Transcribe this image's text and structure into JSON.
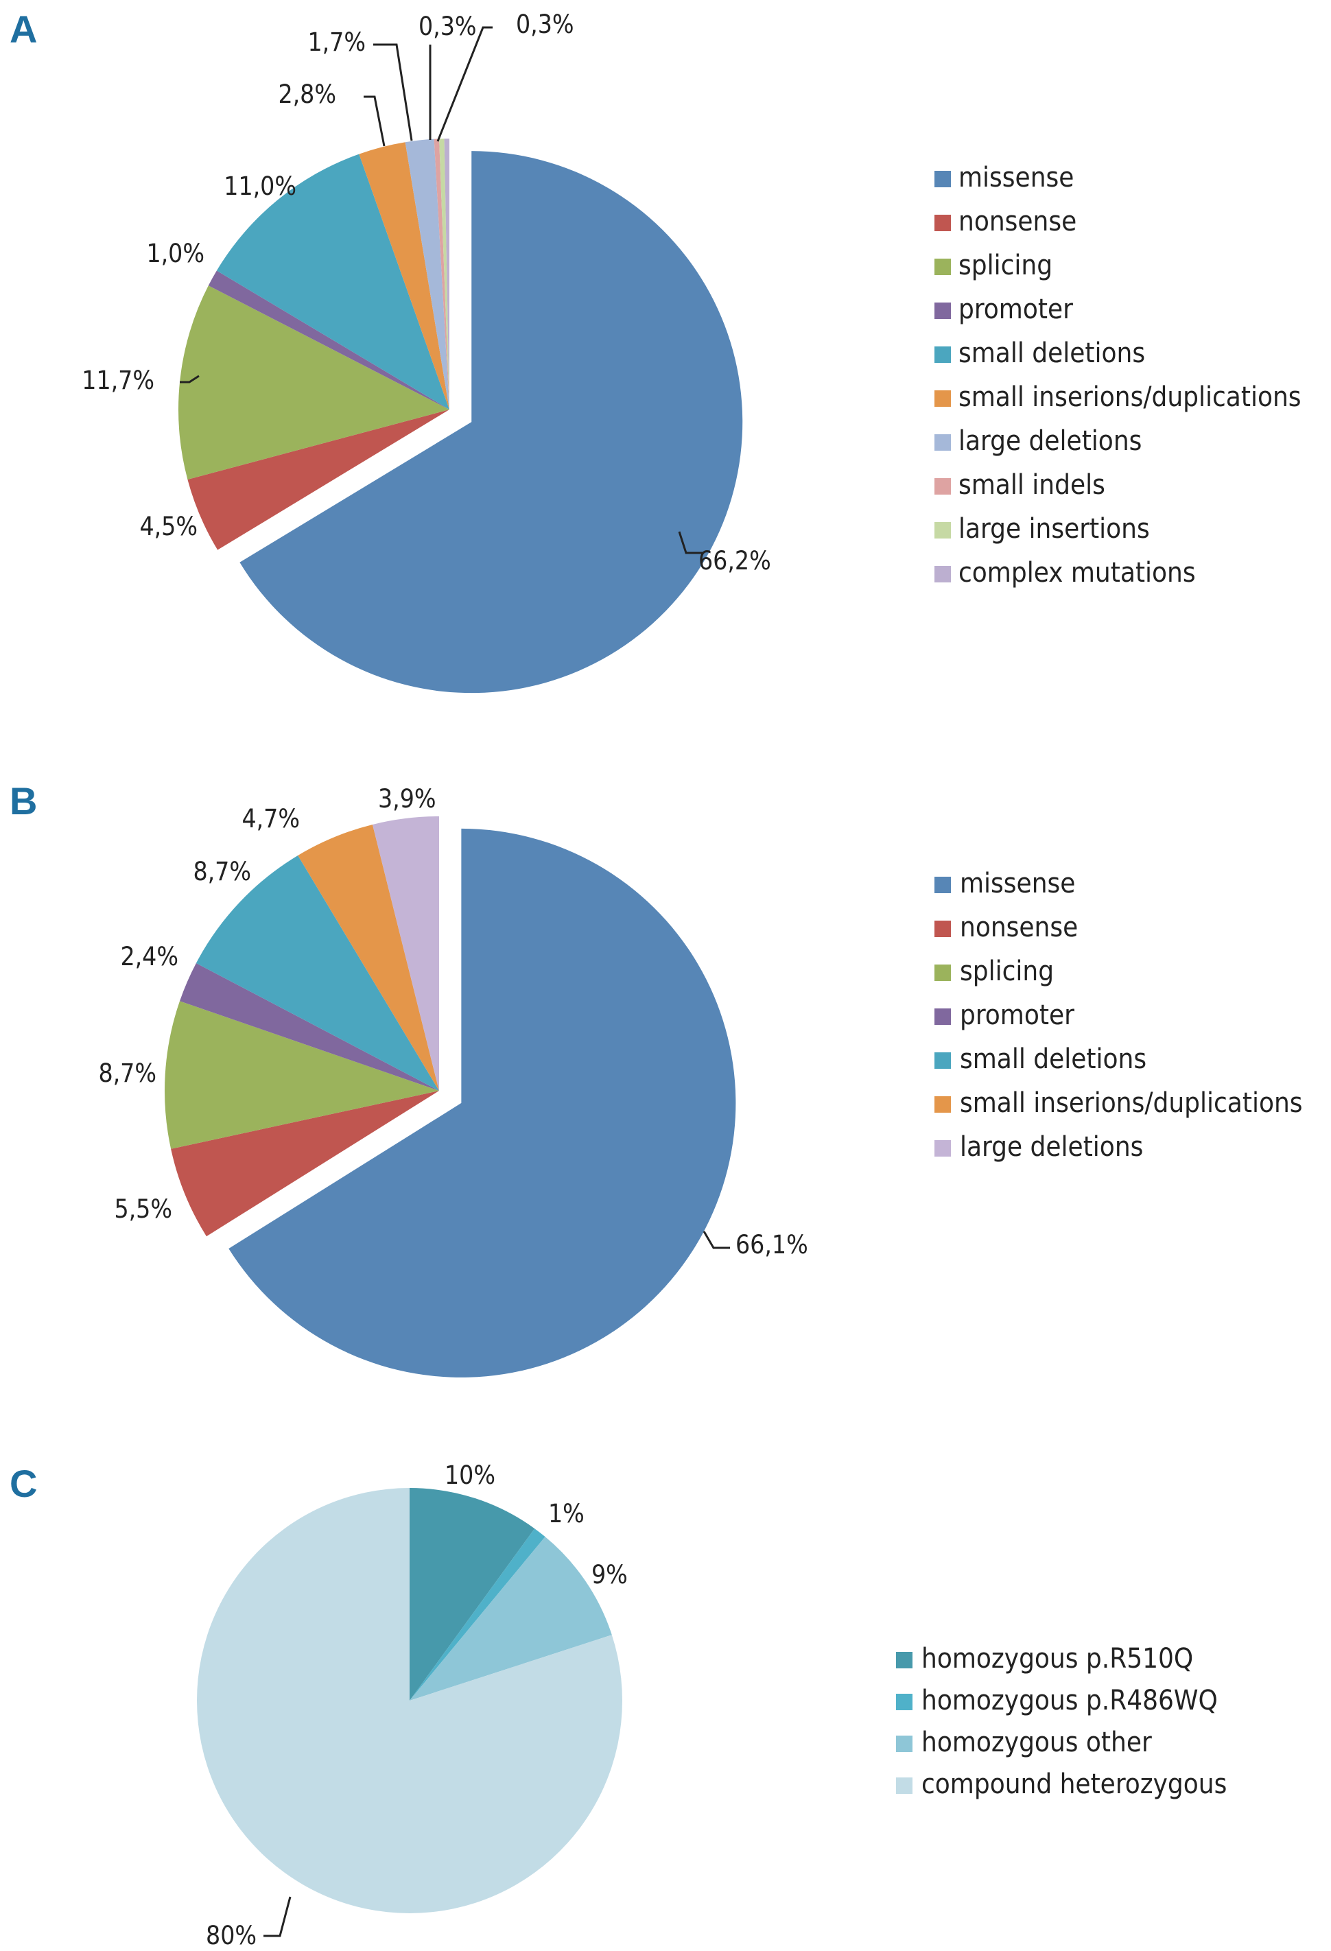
{
  "chart_data": [
    {
      "panel": "A",
      "type": "pie",
      "legend_position": "right",
      "slices": [
        {
          "name": "missense",
          "value": 66.2,
          "label": "66,2%",
          "color": "#5786b6",
          "exploded": true
        },
        {
          "name": "nonsense",
          "value": 4.5,
          "label": "4,5%",
          "color": "#c05650"
        },
        {
          "name": "splicing",
          "value": 11.7,
          "label": "11,7%",
          "color": "#9bb35c"
        },
        {
          "name": "promoter",
          "value": 1.0,
          "label": "1,0%",
          "color": "#80689e"
        },
        {
          "name": "small deletions",
          "value": 11.0,
          "label": "11,0%",
          "color": "#4ba6bf"
        },
        {
          "name": "small inserions/duplications",
          "value": 2.8,
          "label": "2,8%",
          "color": "#e4964a"
        },
        {
          "name": "large deletions",
          "value": 1.7,
          "label": "1,7%",
          "color": "#a5b8d9"
        },
        {
          "name": "small indels",
          "value": 0.3,
          "label": "0,3%",
          "color": "#dea3a2"
        },
        {
          "name": "large insertions",
          "value": 0.3,
          "label": "0,3%",
          "color": "#c6d9a4"
        },
        {
          "name": "complex mutations",
          "value": 0.3,
          "label": "",
          "color": "#bcafd0"
        }
      ]
    },
    {
      "panel": "B",
      "type": "pie",
      "legend_position": "right",
      "slices": [
        {
          "name": "missense",
          "value": 66.1,
          "label": "66,1%",
          "color": "#5786b6",
          "exploded": true
        },
        {
          "name": "nonsense",
          "value": 5.5,
          "label": "5,5%",
          "color": "#c05650"
        },
        {
          "name": "splicing",
          "value": 8.7,
          "label": "8,7%",
          "color": "#9bb35c"
        },
        {
          "name": "promoter",
          "value": 2.4,
          "label": "2,4%",
          "color": "#80689e"
        },
        {
          "name": "small deletions",
          "value": 8.7,
          "label": "8,7%",
          "color": "#4ba6bf"
        },
        {
          "name": "small inserions/duplications",
          "value": 4.7,
          "label": "4,7%",
          "color": "#e4964a"
        },
        {
          "name": "large deletions",
          "value": 3.9,
          "label": "3,9%",
          "color": "#c4b4d6"
        }
      ]
    },
    {
      "panel": "C",
      "type": "pie",
      "legend_position": "right",
      "slices": [
        {
          "name": "homozygous p.R510Q",
          "value": 10,
          "label": "10%",
          "color": "#4799ab"
        },
        {
          "name": "homozygous p.R486WQ",
          "value": 1,
          "label": "1%",
          "color": "#4fb1c9"
        },
        {
          "name": "homozygous other",
          "value": 9,
          "label": "9%",
          "color": "#8ec6d7"
        },
        {
          "name": "compound heterozygous",
          "value": 80,
          "label": "80%",
          "color": "#c2dce6"
        }
      ]
    }
  ]
}
